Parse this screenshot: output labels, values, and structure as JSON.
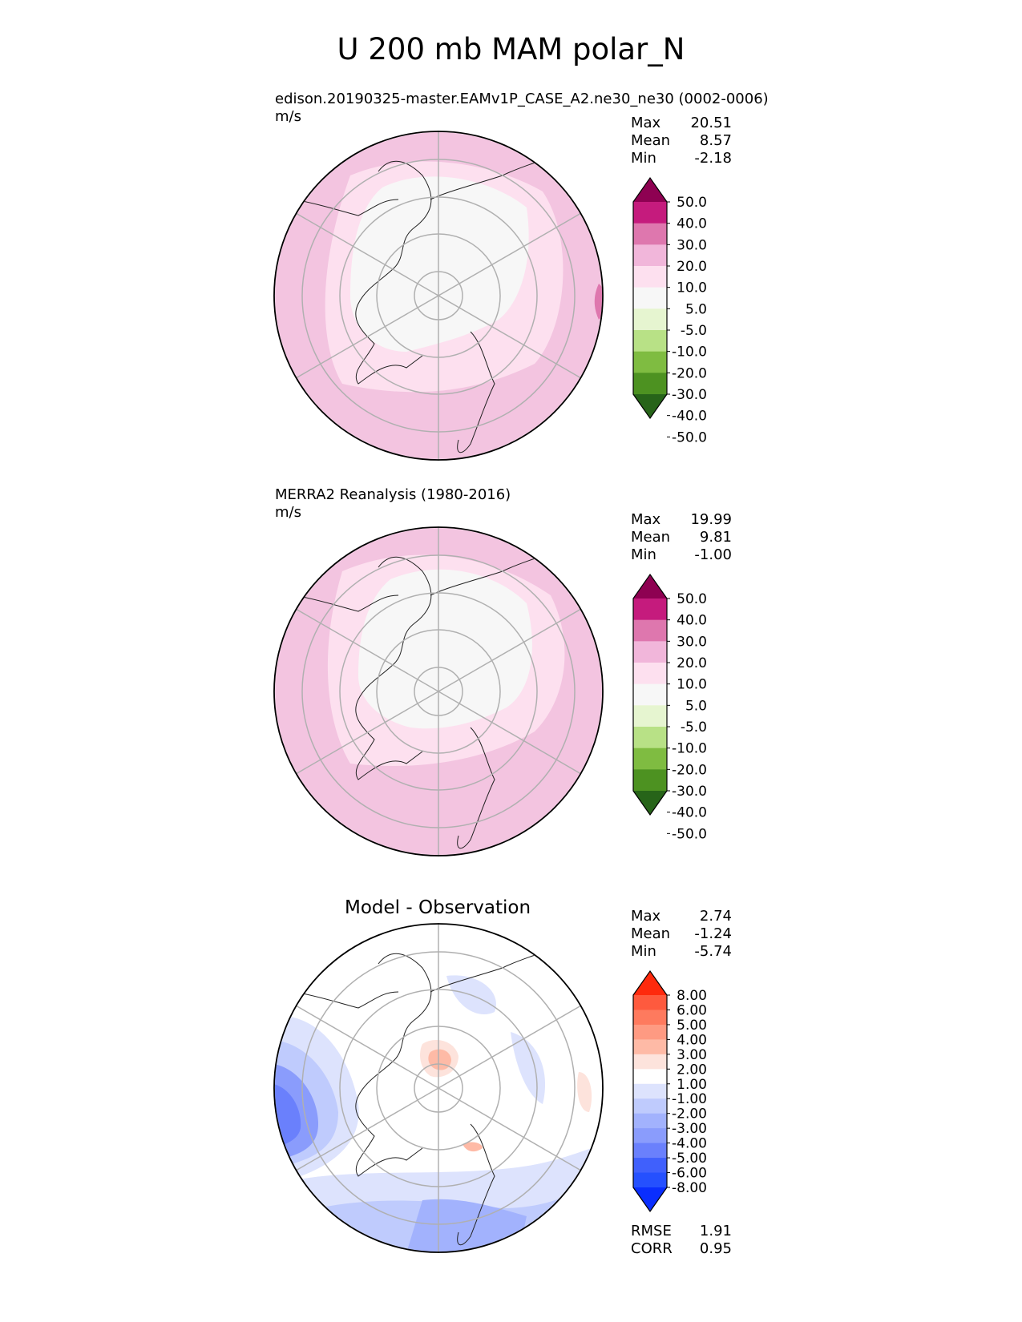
{
  "figure": {
    "title": "U 200 mb MAM polar_N"
  },
  "panels": [
    {
      "title": "edison.20190325-master.EAMv1P_CASE_A2.ne30_ne30 (0002-0006)",
      "units": "m/s",
      "stats": [
        {
          "label": "Max",
          "value": "20.51"
        },
        {
          "label": "Mean",
          "value": "8.57"
        },
        {
          "label": "Min",
          "value": "-2.18"
        }
      ],
      "colorbar": {
        "ticks": [
          "50.0",
          "40.0",
          "30.0",
          "20.0",
          "10.0",
          "5.0",
          "-5.0",
          "-10.0",
          "-20.0",
          "-30.0",
          "-40.0",
          "-50.0"
        ],
        "colors": [
          "#8e0152",
          "#c51b7d",
          "#de77ae",
          "#f1b6da",
          "#fde0ef",
          "#f7f7f7",
          "#e6f5d0",
          "#b8e186",
          "#7fbc41",
          "#4d9221",
          "#276419"
        ]
      }
    },
    {
      "title": "MERRA2 Reanalysis (1980-2016)",
      "units": "m/s",
      "stats": [
        {
          "label": "Max",
          "value": "19.99"
        },
        {
          "label": "Mean",
          "value": "9.81"
        },
        {
          "label": "Min",
          "value": "-1.00"
        }
      ],
      "colorbar": {
        "ticks": [
          "50.0",
          "40.0",
          "30.0",
          "20.0",
          "10.0",
          "5.0",
          "-5.0",
          "-10.0",
          "-20.0",
          "-30.0",
          "-40.0",
          "-50.0"
        ],
        "colors": [
          "#8e0152",
          "#c51b7d",
          "#de77ae",
          "#f1b6da",
          "#fde0ef",
          "#f7f7f7",
          "#e6f5d0",
          "#b8e186",
          "#7fbc41",
          "#4d9221",
          "#276419"
        ]
      }
    },
    {
      "title": "Model - Observation",
      "stats": [
        {
          "label": "Max",
          "value": "2.74"
        },
        {
          "label": "Mean",
          "value": "-1.24"
        },
        {
          "label": "Min",
          "value": "-5.74"
        }
      ],
      "metrics": [
        {
          "label": "RMSE",
          "value": "1.91"
        },
        {
          "label": "CORR",
          "value": "0.95"
        }
      ],
      "colorbar": {
        "ticks": [
          "8.00",
          "6.00",
          "5.00",
          "4.00",
          "3.00",
          "2.00",
          "1.00",
          "-1.00",
          "-2.00",
          "-3.00",
          "-4.00",
          "-5.00",
          "-6.00",
          "-8.00"
        ],
        "colors": [
          "#fe2a0d",
          "#fe5a3e",
          "#fe7a5e",
          "#fe9a82",
          "#febaa6",
          "#fde3dc",
          "#ffffff",
          "#dde3fd",
          "#bfcbfd",
          "#a2b2fd",
          "#8a9cfc",
          "#6a80fc",
          "#4060fc",
          "#2550fe",
          "#0a2efe"
        ]
      }
    }
  ]
}
